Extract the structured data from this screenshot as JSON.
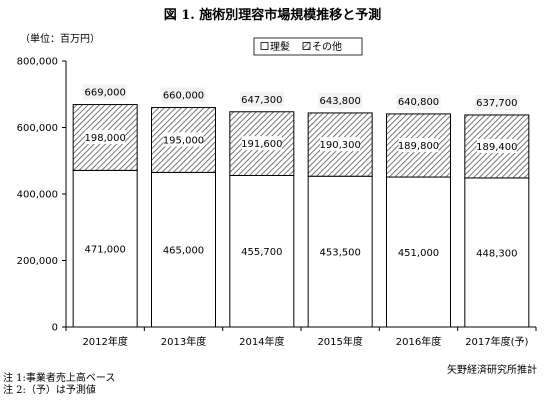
{
  "title": "図 1.  施術別理容市場規模推移と予測",
  "unit_label": "（単位：百万円）",
  "credit": "矢野経済研究所推計",
  "notes": [
    "注 1:事業者売上高ベース",
    "注 2:（予）は予測値"
  ],
  "chart_data": {
    "type": "bar",
    "stacked": true,
    "categories": [
      "2012年度",
      "2013年度",
      "2014年度",
      "2015年度",
      "2016年度",
      "2017年度(予)"
    ],
    "series": [
      {
        "name": "理髪",
        "values": [
          471000,
          465000,
          455700,
          453500,
          451000,
          448300
        ],
        "labels": [
          "471,000",
          "465,000",
          "455,700",
          "453,500",
          "451,000",
          "448,300"
        ],
        "fill": "white"
      },
      {
        "name": "その他",
        "values": [
          198000,
          195000,
          191600,
          190300,
          189800,
          189400
        ],
        "labels": [
          "198,000",
          "195,000",
          "191,600",
          "190,300",
          "189,800",
          "189,400"
        ],
        "fill": "hatched"
      }
    ],
    "totals": [
      669000,
      660000,
      647300,
      643800,
      640800,
      637700
    ],
    "total_labels": [
      "669,000",
      "660,000",
      "647,300",
      "643,800",
      "640,800",
      "637,700"
    ],
    "ylim": [
      0,
      800000
    ],
    "yticks": [
      0,
      200000,
      400000,
      600000,
      800000
    ],
    "ytick_labels": [
      "0",
      "200,000",
      "400,000",
      "600,000",
      "800,000"
    ],
    "legend_position": "top-center",
    "grid": false,
    "colors": {
      "bar_stroke": "#000000",
      "hatch": "#555555",
      "total_label_bg": "#f2f2f2"
    }
  }
}
